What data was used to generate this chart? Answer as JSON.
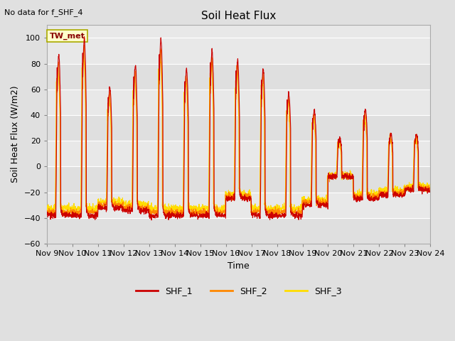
{
  "title": "Soil Heat Flux",
  "subtitle": "No data for f_SHF_4",
  "ylabel": "Soil Heat Flux (W/m2)",
  "xlabel": "Time",
  "ylim": [
    -60,
    110
  ],
  "yticks": [
    -60,
    -40,
    -20,
    0,
    20,
    40,
    60,
    80,
    100
  ],
  "xstart": 9,
  "xend": 24,
  "xtick_labels": [
    "Nov 9",
    "Nov 10",
    "Nov 11",
    "Nov 12",
    "Nov 13",
    "Nov 14",
    "Nov 15",
    "Nov 16",
    "Nov 17",
    "Nov 18",
    "Nov 19",
    "Nov 20",
    "Nov 21",
    "Nov 22",
    "Nov 23",
    "Nov 24"
  ],
  "colors": {
    "SHF_1": "#cc0000",
    "SHF_2": "#ff8800",
    "SHF_3": "#ffdd00"
  },
  "tw_met_text_color": "#880000",
  "tw_met_bg": "#ffffcc",
  "tw_met_border": "#aaaa00",
  "bg_color": "#e0e0e0",
  "plot_bg_color": "#e8e8e8",
  "grid_color": "#ffffff",
  "subtitle_fontsize": 8,
  "title_fontsize": 11,
  "axis_label_fontsize": 9,
  "tick_fontsize": 8
}
